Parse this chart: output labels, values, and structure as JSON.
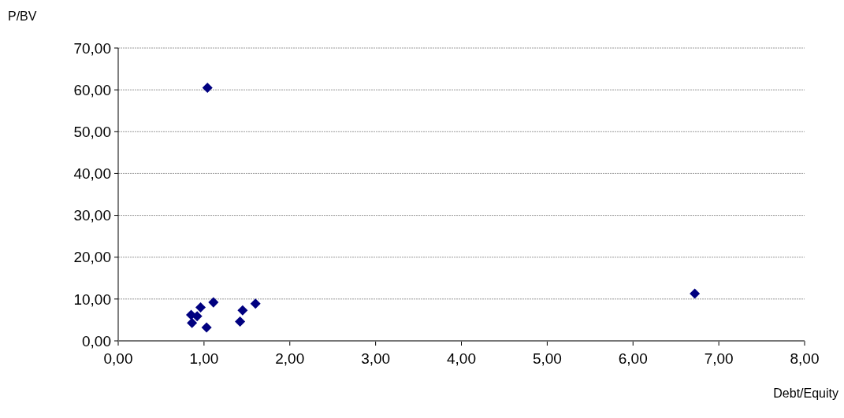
{
  "chart_data": {
    "type": "scatter",
    "xlabel": "Debt/Equity",
    "ylabel": "P/BV",
    "marker": "diamond",
    "grid": "y",
    "xlim": [
      0,
      8
    ],
    "ylim": [
      0,
      70
    ],
    "xticks": [
      {
        "value": 0,
        "label": "0,00"
      },
      {
        "value": 1,
        "label": "1,00"
      },
      {
        "value": 2,
        "label": "2,00"
      },
      {
        "value": 3,
        "label": "3,00"
      },
      {
        "value": 4,
        "label": "4,00"
      },
      {
        "value": 5,
        "label": "5,00"
      },
      {
        "value": 6,
        "label": "6,00"
      },
      {
        "value": 7,
        "label": "7,00"
      },
      {
        "value": 8,
        "label": "8,00"
      }
    ],
    "yticks": [
      {
        "value": 0,
        "label": "0,00"
      },
      {
        "value": 10,
        "label": "10,00"
      },
      {
        "value": 20,
        "label": "20,00"
      },
      {
        "value": 30,
        "label": "30,00"
      },
      {
        "value": 40,
        "label": "40,00"
      },
      {
        "value": 50,
        "label": "50,00"
      },
      {
        "value": 60,
        "label": "60,00"
      },
      {
        "value": 70,
        "label": "70,00"
      }
    ],
    "series": [
      {
        "color": "#000080",
        "x": [
          0.85,
          0.92,
          0.86,
          0.96,
          1.11,
          1.03,
          1.45,
          1.42,
          1.6,
          1.04,
          6.72
        ],
        "values": [
          6.2,
          5.9,
          4.3,
          8.0,
          9.2,
          3.2,
          7.3,
          4.6,
          8.9,
          60.5,
          11.3
        ]
      }
    ]
  }
}
